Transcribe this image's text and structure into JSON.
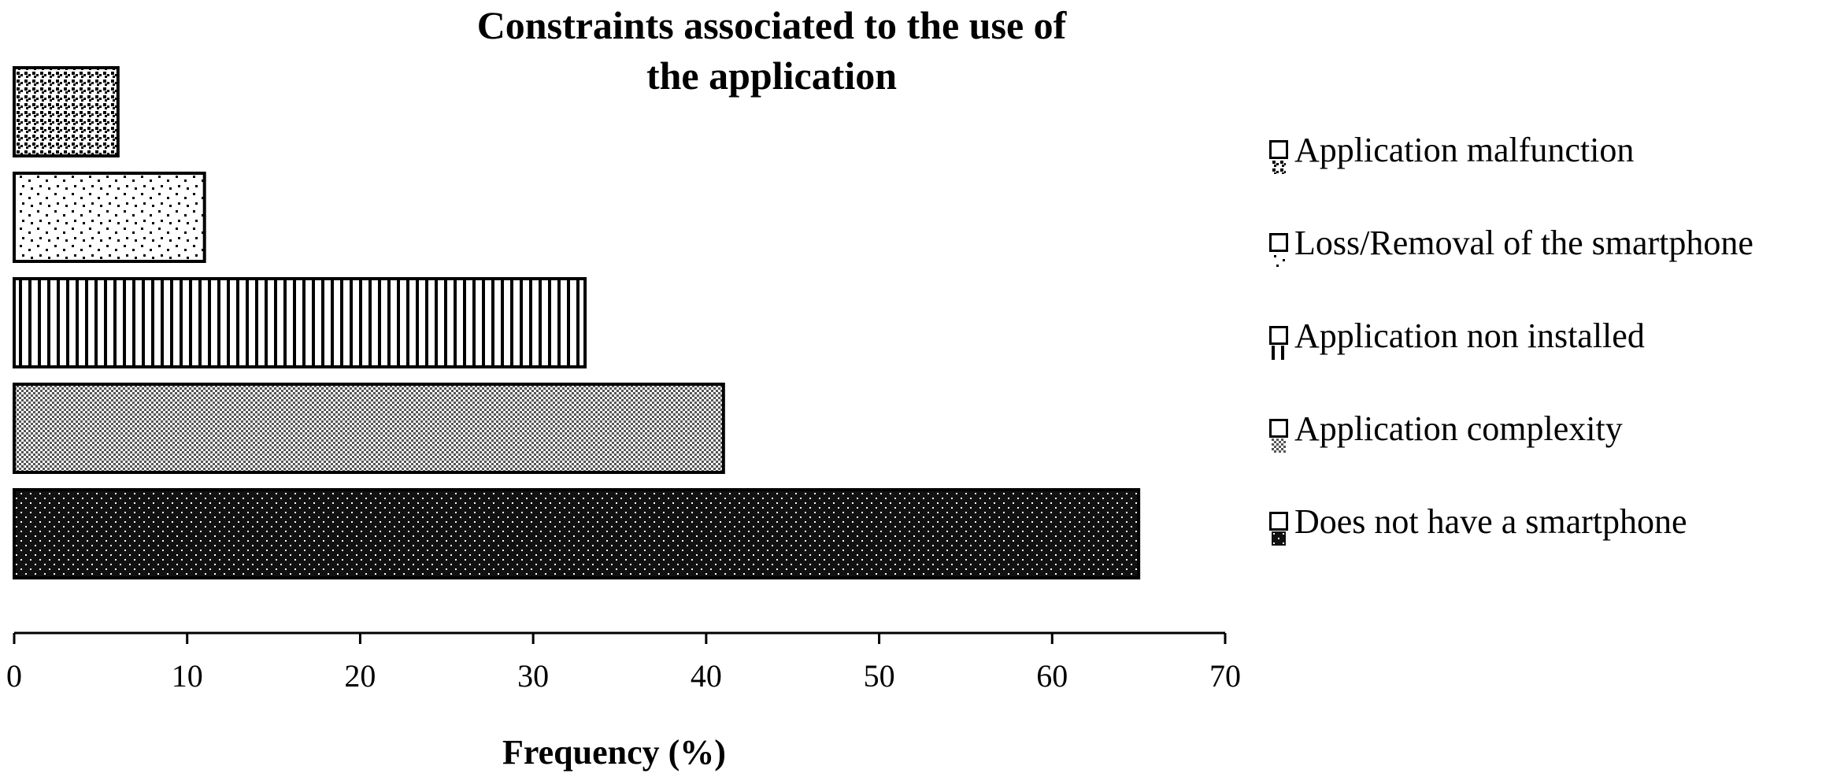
{
  "chart_data": {
    "type": "bar",
    "orientation": "horizontal",
    "title": "Constraints associated to the use of the application",
    "title_lines": [
      "Constraints associated to the use of",
      "the application"
    ],
    "xlabel": "Frequency (%)",
    "ylabel": "",
    "xlim": [
      0,
      70
    ],
    "xticks": [
      "0",
      "10",
      "20",
      "30",
      "40",
      "50",
      "60",
      "70"
    ],
    "grid": false,
    "legend_position": "right",
    "categories": [
      "Does not have a smartphone",
      "Application complexity",
      "Application non installed",
      "Loss/Removal of the smartphone",
      "Application malfunction"
    ],
    "values": [
      65,
      41,
      33,
      11,
      6
    ],
    "patterns": [
      "dotted-dark",
      "crosshatch-gray",
      "vertical-lines",
      "sparse-dots",
      "dense-checker"
    ],
    "colors": {
      "stroke": "#000000",
      "dark": "#111111",
      "background": "#ffffff"
    },
    "legend": [
      "Application malfunction",
      "Loss/Removal of the smartphone",
      "Application non installed",
      "Application complexity",
      "Does not have a smartphone"
    ]
  }
}
